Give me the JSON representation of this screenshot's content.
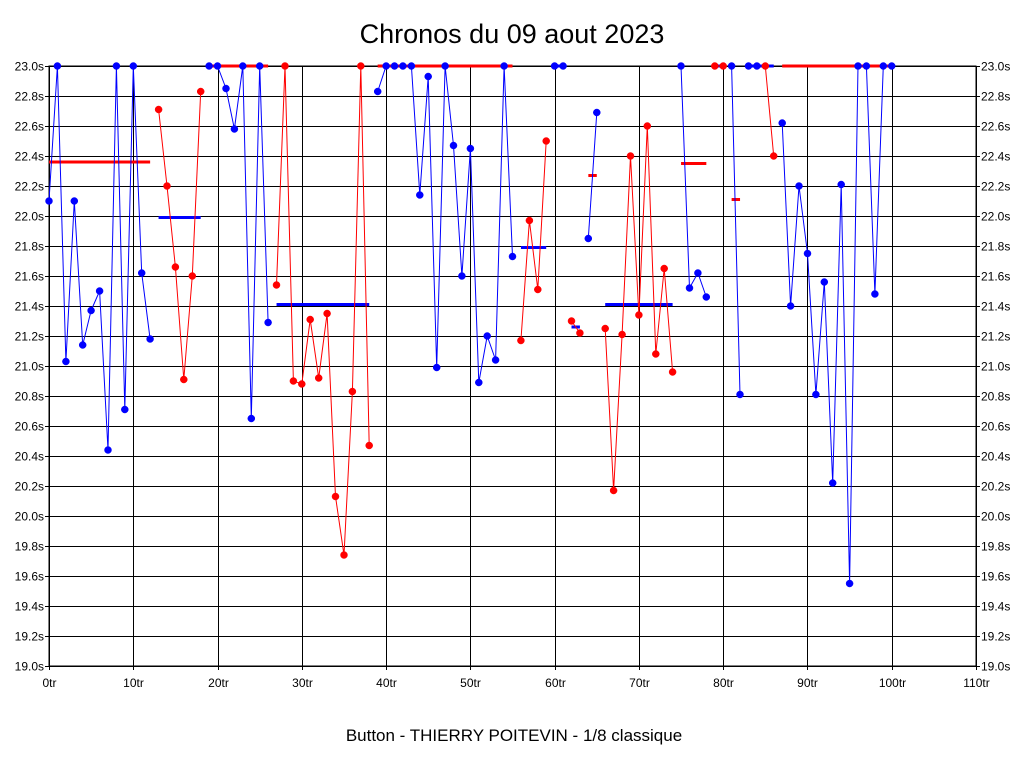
{
  "title": "Chronos du 09 aout 2023",
  "footer": "Button - THIERRY POITEVIN - 1/8 classique",
  "chart_data": {
    "type": "line",
    "title": "Chronos du 09 aout 2023",
    "xlabel": "",
    "ylabel": "",
    "xlim": [
      0,
      110
    ],
    "ylim": [
      19.0,
      23.0
    ],
    "grid": true,
    "x_ticks": [
      0,
      10,
      20,
      30,
      40,
      50,
      60,
      70,
      80,
      90,
      100,
      110
    ],
    "x_tick_labels": [
      "0tr",
      "10tr",
      "20tr",
      "30tr",
      "40tr",
      "50tr",
      "60tr",
      "70tr",
      "80tr",
      "90tr",
      "100tr",
      "110tr"
    ],
    "y_ticks": [
      19.0,
      19.2,
      19.4,
      19.6,
      19.8,
      20.0,
      20.2,
      20.4,
      20.6,
      20.8,
      21.0,
      21.2,
      21.4,
      21.6,
      21.8,
      22.0,
      22.2,
      22.4,
      22.6,
      22.8,
      23.0
    ],
    "y_tick_labels": [
      "19.0s",
      "19.2s",
      "19.4s",
      "19.6s",
      "19.8s",
      "20.0s",
      "20.2s",
      "20.4s",
      "20.6s",
      "20.8s",
      "21.0s",
      "21.2s",
      "21.4s",
      "21.6s",
      "21.8s",
      "22.0s",
      "22.2s",
      "22.4s",
      "22.6s",
      "22.8s",
      "23.0s"
    ],
    "colors": {
      "blue": "#0000ff",
      "red": "#ff0000",
      "grid": "#000000"
    },
    "series": [
      {
        "color": "#0000ff",
        "x": [
          0,
          1,
          2,
          3,
          4,
          5,
          6,
          7,
          8,
          9,
          10,
          11,
          12
        ],
        "y": [
          22.1,
          23.0,
          21.03,
          22.1,
          21.14,
          21.37,
          21.5,
          20.44,
          23.0,
          20.71,
          23.0,
          21.62,
          21.18
        ]
      },
      {
        "color": "#ff0000",
        "x": [
          13,
          14,
          15,
          16,
          17,
          18
        ],
        "y": [
          22.71,
          22.2,
          21.66,
          20.91,
          21.6,
          22.83
        ]
      },
      {
        "color": "#0000ff",
        "x": [
          19,
          20,
          21,
          22,
          23,
          24,
          25,
          26
        ],
        "y": [
          23.0,
          23.0,
          22.85,
          22.58,
          23.0,
          20.65,
          23.0,
          21.29
        ]
      },
      {
        "color": "#ff0000",
        "x": [
          27,
          28,
          29,
          30,
          31,
          32,
          33,
          34,
          35,
          36,
          37,
          38
        ],
        "y": [
          21.54,
          23.0,
          20.9,
          20.88,
          21.31,
          20.92,
          21.35,
          20.13,
          19.74,
          20.83,
          23.0,
          20.47
        ]
      },
      {
        "color": "#0000ff",
        "x": [
          39,
          40,
          41,
          42,
          43,
          44,
          45,
          46,
          47,
          48,
          49,
          50,
          51,
          52,
          53,
          54,
          55
        ],
        "y": [
          22.83,
          23.0,
          23.0,
          23.0,
          23.0,
          22.14,
          22.93,
          20.99,
          23.0,
          22.47,
          21.6,
          22.45,
          20.89,
          21.2,
          21.04,
          23.0,
          21.73
        ]
      },
      {
        "color": "#ff0000",
        "x": [
          56,
          57,
          58,
          59
        ],
        "y": [
          21.17,
          21.97,
          21.51,
          22.5
        ]
      },
      {
        "color": "#0000ff",
        "x": [
          60,
          61
        ],
        "y": [
          23.0,
          23.0
        ]
      },
      {
        "color": "#ff0000",
        "x": [
          62,
          63
        ],
        "y": [
          21.3,
          21.22
        ]
      },
      {
        "color": "#0000ff",
        "x": [
          64,
          65
        ],
        "y": [
          21.85,
          22.69
        ]
      },
      {
        "color": "#ff0000",
        "x": [
          66,
          67,
          68,
          69,
          70,
          71,
          72,
          73,
          74
        ],
        "y": [
          21.25,
          20.17,
          21.21,
          22.4,
          21.34,
          22.6,
          21.08,
          21.65,
          20.96
        ]
      },
      {
        "color": "#0000ff",
        "x": [
          75,
          76,
          77,
          78
        ],
        "y": [
          23.0,
          21.52,
          21.62,
          21.46
        ]
      },
      {
        "color": "#ff0000",
        "x": [
          79,
          80
        ],
        "y": [
          23.0,
          23.0
        ]
      },
      {
        "color": "#0000ff",
        "x": [
          81,
          82
        ],
        "y": [
          23.0,
          20.81
        ]
      },
      {
        "color": "#0000ff",
        "x": [
          83,
          84
        ],
        "y": [
          23.0,
          23.0
        ]
      },
      {
        "color": "#ff0000",
        "x": [
          85,
          86
        ],
        "y": [
          23.0,
          22.4
        ]
      },
      {
        "color": "#0000ff",
        "x": [
          87,
          88,
          89,
          90,
          91,
          92,
          93,
          94,
          95,
          96,
          97,
          98,
          99,
          100
        ],
        "y": [
          22.62,
          21.4,
          22.2,
          21.75,
          20.81,
          21.56,
          20.22,
          22.21,
          19.55,
          23.0,
          23.0,
          21.48,
          23.0,
          23.0
        ]
      }
    ],
    "averages": [
      {
        "color": "#ff0000",
        "x": [
          0,
          12
        ],
        "y": 22.36
      },
      {
        "color": "#0000ff",
        "x": [
          13,
          18
        ],
        "y": 21.99
      },
      {
        "color": "#ff0000",
        "x": [
          19,
          26
        ],
        "y": 23.0
      },
      {
        "color": "#0000ff",
        "x": [
          27,
          38
        ],
        "y": 21.41
      },
      {
        "color": "#ff0000",
        "x": [
          39,
          55
        ],
        "y": 23.0
      },
      {
        "color": "#0000ff",
        "x": [
          56,
          59
        ],
        "y": 21.79
      },
      {
        "color": "#0000ff",
        "x": [
          60,
          61
        ],
        "y": 23.0
      },
      {
        "color": "#0000ff",
        "x": [
          62,
          63
        ],
        "y": 21.26
      },
      {
        "color": "#ff0000",
        "x": [
          64,
          65
        ],
        "y": 22.27
      },
      {
        "color": "#0000ff",
        "x": [
          66,
          74
        ],
        "y": 21.41
      },
      {
        "color": "#ff0000",
        "x": [
          75,
          78
        ],
        "y": 22.35
      },
      {
        "color": "#0000ff",
        "x": [
          79,
          80
        ],
        "y": 23.0
      },
      {
        "color": "#ff0000",
        "x": [
          81,
          82
        ],
        "y": 22.11
      },
      {
        "color": "#0000ff",
        "x": [
          83,
          86
        ],
        "y": 23.0
      },
      {
        "color": "#ff0000",
        "x": [
          87,
          100
        ],
        "y": 23.0
      }
    ]
  }
}
